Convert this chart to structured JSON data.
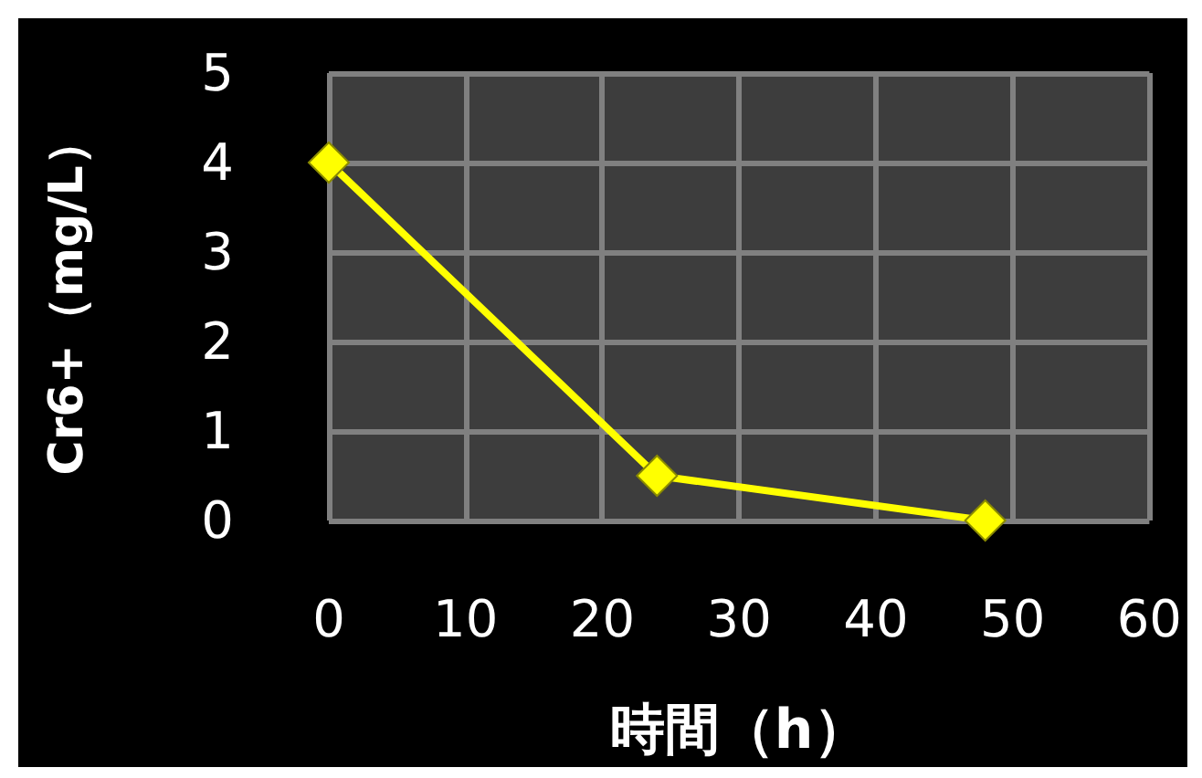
{
  "chart_data": {
    "type": "line",
    "xlabel": "時間（h）",
    "ylabel": "Cr6+（mg/L）",
    "x": [
      0,
      24,
      48
    ],
    "series": [
      {
        "color": "#ffff00",
        "values": [
          4,
          0.5,
          0
        ]
      }
    ],
    "xlim": [
      0,
      60
    ],
    "xticks": [
      0,
      10,
      20,
      30,
      40,
      50,
      60
    ],
    "ylim": [
      0,
      5
    ],
    "yticks": [
      0,
      1,
      2,
      3,
      4,
      5
    ],
    "grid": true,
    "marker": "diamond",
    "line_style": "solid"
  }
}
